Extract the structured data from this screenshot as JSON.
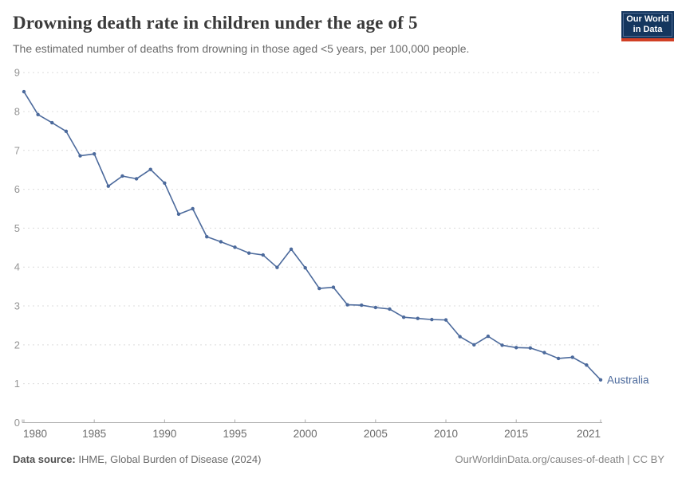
{
  "header": {
    "title": "Drowning death rate in children under the age of 5",
    "subtitle": "The estimated number of deaths from drowning in those aged <5 years, per 100,000 people.",
    "logo": {
      "line1": "Our World",
      "line2": "in Data"
    }
  },
  "footer": {
    "source_label": "Data source:",
    "source_text": " IHME, Global Burden of Disease (2024)",
    "attribution": "OurWorldinData.org/causes-of-death | CC BY"
  },
  "colors": {
    "line": "#4c6a9c",
    "grid": "#dcdcdc",
    "axis": "#adadad",
    "y_tick_label": "#959595",
    "x_tick_label": "#6b6b6b",
    "logo_bg": "#14365e",
    "logo_red": "#d13f24"
  },
  "chart_data": {
    "type": "line",
    "title": "Drowning death rate in children under the age of 5",
    "subtitle": "The estimated number of deaths from drowning in those aged <5 years, per 100,000 people.",
    "xlabel": "",
    "ylabel": "",
    "xlim": [
      1980,
      2021
    ],
    "ylim": [
      0,
      9
    ],
    "grid": "horizontal-dashed",
    "legend_position": "end-of-line",
    "x_ticks": [
      1980,
      1985,
      1990,
      1995,
      2000,
      2005,
      2010,
      2015,
      2021
    ],
    "y_ticks": [
      0,
      1,
      2,
      3,
      4,
      5,
      6,
      7,
      8,
      9
    ],
    "series": [
      {
        "name": "Australia",
        "color": "#4c6a9c",
        "x": [
          1980,
          1981,
          1982,
          1983,
          1984,
          1985,
          1986,
          1987,
          1988,
          1989,
          1990,
          1991,
          1992,
          1993,
          1994,
          1995,
          1996,
          1997,
          1998,
          1999,
          2000,
          2001,
          2002,
          2003,
          2004,
          2005,
          2006,
          2007,
          2008,
          2009,
          2010,
          2011,
          2012,
          2013,
          2014,
          2015,
          2016,
          2017,
          2018,
          2019,
          2020,
          2021
        ],
        "values": [
          8.51,
          7.92,
          7.71,
          7.49,
          6.86,
          6.91,
          6.08,
          6.34,
          6.27,
          6.51,
          6.16,
          5.36,
          5.5,
          4.78,
          4.65,
          4.51,
          4.36,
          4.31,
          3.99,
          4.46,
          3.98,
          3.45,
          3.48,
          3.03,
          3.02,
          2.96,
          2.92,
          2.71,
          2.68,
          2.65,
          2.64,
          2.21,
          2.0,
          2.22,
          1.99,
          1.93,
          1.92,
          1.8,
          1.65,
          1.68,
          1.48,
          1.1
        ]
      }
    ]
  }
}
